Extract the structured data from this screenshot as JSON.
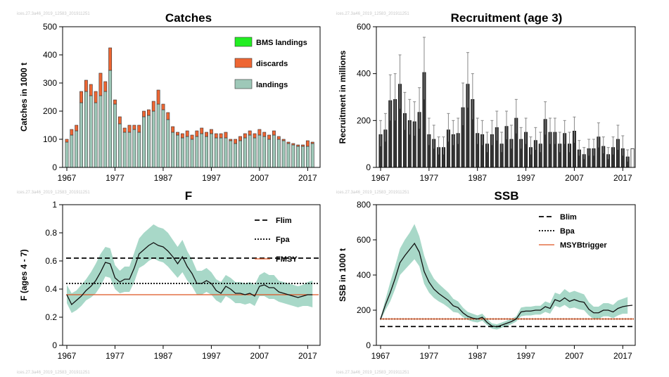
{
  "watermark": "ices.27.3a46_2019_12583_201911251",
  "chart_data": [
    {
      "id": "catches",
      "type": "bar",
      "title": "Catches",
      "ylabel": "Catches in 1000 t",
      "ylim": [
        0,
        500
      ],
      "yticks": [
        0,
        100,
        200,
        300,
        400,
        500
      ],
      "xticks": [
        1967,
        1977,
        1987,
        1997,
        2007,
        2017
      ],
      "stacked": true,
      "legend_position": "top-right",
      "colors": {
        "landings": "#9ec8b8",
        "discards": "#ee6633",
        "bms": "#22ee22"
      },
      "x": [
        1967,
        1968,
        1969,
        1970,
        1971,
        1972,
        1973,
        1974,
        1975,
        1976,
        1977,
        1978,
        1979,
        1980,
        1981,
        1982,
        1983,
        1984,
        1985,
        1986,
        1987,
        1988,
        1989,
        1990,
        1991,
        1992,
        1993,
        1994,
        1995,
        1996,
        1997,
        1998,
        1999,
        2000,
        2001,
        2002,
        2003,
        2004,
        2005,
        2006,
        2007,
        2008,
        2009,
        2010,
        2011,
        2012,
        2013,
        2014,
        2015,
        2016,
        2017,
        2018
      ],
      "series": [
        {
          "name": "landings",
          "values": [
            90,
            115,
            130,
            230,
            270,
            255,
            230,
            255,
            270,
            345,
            225,
            155,
            125,
            125,
            135,
            125,
            180,
            185,
            200,
            225,
            205,
            170,
            125,
            115,
            105,
            110,
            100,
            110,
            120,
            110,
            120,
            105,
            105,
            105,
            95,
            85,
            95,
            105,
            115,
            105,
            115,
            110,
            100,
            115,
            100,
            95,
            85,
            80,
            75,
            75,
            75,
            85
          ]
        },
        {
          "name": "discards",
          "values": [
            10,
            20,
            20,
            40,
            40,
            40,
            40,
            80,
            35,
            80,
            15,
            25,
            15,
            25,
            15,
            25,
            20,
            20,
            35,
            50,
            20,
            25,
            20,
            10,
            15,
            20,
            15,
            20,
            20,
            15,
            15,
            15,
            15,
            20,
            5,
            15,
            15,
            15,
            15,
            15,
            20,
            15,
            15,
            15,
            10,
            5,
            5,
            5,
            5,
            5,
            20,
            5
          ]
        },
        {
          "name": "BMS landings",
          "values": [
            0,
            0,
            0,
            0,
            0,
            0,
            0,
            0,
            0,
            0,
            0,
            0,
            0,
            0,
            0,
            0,
            0,
            0,
            0,
            0,
            0,
            0,
            0,
            0,
            0,
            0,
            0,
            0,
            0,
            0,
            0,
            0,
            0,
            0,
            0,
            0,
            0,
            0,
            0,
            0,
            0,
            0,
            0,
            0,
            0,
            0,
            0,
            0,
            0,
            0,
            0,
            0
          ]
        }
      ],
      "legend": [
        "BMS landings",
        "discards",
        "landings"
      ]
    },
    {
      "id": "recruitment",
      "type": "bar",
      "title": "Recruitment (age 3)",
      "ylabel": "Recruitment in millions",
      "ylim": [
        0,
        600
      ],
      "yticks": [
        0,
        200,
        400,
        600
      ],
      "xticks": [
        1967,
        1977,
        1987,
        1997,
        2007,
        2017
      ],
      "colors": {
        "bar": "#333333",
        "last": "#ffffff"
      },
      "x": [
        1967,
        1968,
        1969,
        1970,
        1971,
        1972,
        1973,
        1974,
        1975,
        1976,
        1977,
        1978,
        1979,
        1980,
        1981,
        1982,
        1983,
        1984,
        1985,
        1986,
        1987,
        1988,
        1989,
        1990,
        1991,
        1992,
        1993,
        1994,
        1995,
        1996,
        1997,
        1998,
        1999,
        2000,
        2001,
        2002,
        2003,
        2004,
        2005,
        2006,
        2007,
        2008,
        2009,
        2010,
        2011,
        2012,
        2013,
        2014,
        2015,
        2016,
        2017,
        2018,
        2019
      ],
      "values": [
        140,
        160,
        285,
        290,
        355,
        230,
        200,
        195,
        235,
        405,
        140,
        120,
        85,
        85,
        160,
        140,
        145,
        255,
        355,
        290,
        145,
        140,
        100,
        140,
        170,
        100,
        175,
        120,
        210,
        120,
        150,
        85,
        115,
        100,
        205,
        150,
        150,
        100,
        145,
        100,
        155,
        75,
        55,
        80,
        80,
        130,
        90,
        55,
        85,
        120,
        80,
        45,
        80
      ],
      "upper": [
        200,
        230,
        395,
        400,
        480,
        320,
        290,
        280,
        340,
        555,
        210,
        180,
        130,
        130,
        230,
        200,
        210,
        360,
        490,
        400,
        210,
        200,
        150,
        200,
        240,
        150,
        240,
        180,
        290,
        170,
        210,
        130,
        170,
        150,
        280,
        210,
        210,
        150,
        200,
        150,
        215,
        115,
        85,
        120,
        120,
        190,
        130,
        85,
        130,
        180,
        135,
        75,
        0
      ],
      "lower": [
        90,
        110,
        200,
        200,
        250,
        160,
        140,
        135,
        165,
        290,
        95,
        80,
        55,
        55,
        110,
        95,
        100,
        180,
        255,
        205,
        100,
        95,
        65,
        95,
        115,
        65,
        120,
        80,
        145,
        80,
        100,
        55,
        75,
        65,
        140,
        100,
        100,
        65,
        100,
        65,
        105,
        50,
        35,
        50,
        50,
        85,
        60,
        35,
        55,
        75,
        50,
        25,
        0
      ]
    },
    {
      "id": "fishing-mortality",
      "type": "line",
      "title": "F",
      "ylabel": "F (ages 4 - 7)",
      "ylim": [
        0,
        1
      ],
      "yticks": [
        0,
        0.2,
        0.4,
        0.6,
        0.8,
        1
      ],
      "ytick_labels": [
        "0",
        "0.2",
        "0.4",
        "0.6",
        "0.8",
        "1"
      ],
      "xticks": [
        1967,
        1977,
        1987,
        1997,
        2007,
        2017
      ],
      "colors": {
        "line": "#111111",
        "band": "#a8d8c8",
        "fmsy": "#dd5522"
      },
      "reference_lines": [
        {
          "name": "Flim",
          "value": 0.62,
          "style": "dashed"
        },
        {
          "name": "Fpa",
          "value": 0.44,
          "style": "dotted"
        },
        {
          "name": "FMSY",
          "value": 0.36,
          "style": "solid"
        }
      ],
      "x": [
        1967,
        1968,
        1969,
        1970,
        1971,
        1972,
        1973,
        1974,
        1975,
        1976,
        1977,
        1978,
        1979,
        1980,
        1981,
        1982,
        1983,
        1984,
        1985,
        1986,
        1987,
        1988,
        1989,
        1990,
        1991,
        1992,
        1993,
        1994,
        1995,
        1996,
        1997,
        1998,
        1999,
        2000,
        2001,
        2002,
        2003,
        2004,
        2005,
        2006,
        2007,
        2008,
        2009,
        2010,
        2011,
        2012,
        2013,
        2014,
        2015,
        2016,
        2017,
        2018
      ],
      "values": [
        0.36,
        0.29,
        0.32,
        0.35,
        0.39,
        0.42,
        0.46,
        0.52,
        0.59,
        0.58,
        0.48,
        0.45,
        0.47,
        0.47,
        0.55,
        0.65,
        0.68,
        0.71,
        0.73,
        0.71,
        0.7,
        0.67,
        0.63,
        0.58,
        0.63,
        0.56,
        0.51,
        0.44,
        0.44,
        0.46,
        0.44,
        0.39,
        0.37,
        0.42,
        0.4,
        0.37,
        0.37,
        0.36,
        0.37,
        0.35,
        0.42,
        0.43,
        0.41,
        0.41,
        0.38,
        0.37,
        0.36,
        0.35,
        0.34,
        0.35,
        0.36,
        0.36
      ],
      "upper": [
        0.43,
        0.37,
        0.39,
        0.43,
        0.47,
        0.52,
        0.58,
        0.65,
        0.7,
        0.69,
        0.57,
        0.53,
        0.56,
        0.56,
        0.66,
        0.76,
        0.8,
        0.83,
        0.86,
        0.84,
        0.83,
        0.8,
        0.75,
        0.7,
        0.75,
        0.67,
        0.61,
        0.53,
        0.53,
        0.55,
        0.52,
        0.47,
        0.45,
        0.5,
        0.48,
        0.45,
        0.45,
        0.44,
        0.45,
        0.43,
        0.5,
        0.52,
        0.5,
        0.5,
        0.46,
        0.45,
        0.44,
        0.43,
        0.42,
        0.43,
        0.45,
        0.46
      ],
      "lower": [
        0.3,
        0.23,
        0.25,
        0.28,
        0.32,
        0.34,
        0.37,
        0.42,
        0.49,
        0.48,
        0.4,
        0.37,
        0.38,
        0.38,
        0.45,
        0.55,
        0.57,
        0.6,
        0.62,
        0.6,
        0.59,
        0.56,
        0.52,
        0.48,
        0.52,
        0.46,
        0.42,
        0.36,
        0.36,
        0.38,
        0.36,
        0.32,
        0.3,
        0.35,
        0.33,
        0.3,
        0.3,
        0.29,
        0.3,
        0.28,
        0.35,
        0.35,
        0.33,
        0.33,
        0.31,
        0.3,
        0.29,
        0.28,
        0.27,
        0.28,
        0.28,
        0.27
      ]
    },
    {
      "id": "ssb",
      "type": "line",
      "title": "SSB",
      "ylabel": "SSB in 1000 t",
      "ylim": [
        0,
        800
      ],
      "yticks": [
        0,
        200,
        400,
        600,
        800
      ],
      "xticks": [
        1967,
        1977,
        1987,
        1997,
        2007,
        2017
      ],
      "colors": {
        "line": "#111111",
        "band": "#a8d8c8",
        "msy": "#dd5522"
      },
      "reference_lines": [
        {
          "name": "Blim",
          "value": 107,
          "style": "dashed"
        },
        {
          "name": "Bpa",
          "value": 150,
          "style": "dotted"
        },
        {
          "name": "MSYBtrigger",
          "value": 150,
          "style": "solid"
        }
      ],
      "x": [
        1967,
        1968,
        1969,
        1970,
        1971,
        1972,
        1973,
        1974,
        1975,
        1976,
        1977,
        1978,
        1979,
        1980,
        1981,
        1982,
        1983,
        1984,
        1985,
        1986,
        1987,
        1988,
        1989,
        1990,
        1991,
        1992,
        1993,
        1994,
        1995,
        1996,
        1997,
        1998,
        1999,
        2000,
        2001,
        2002,
        2003,
        2004,
        2005,
        2006,
        2007,
        2008,
        2009,
        2010,
        2011,
        2012,
        2013,
        2014,
        2015,
        2016,
        2017,
        2018,
        2019
      ],
      "values": [
        150,
        230,
        300,
        380,
        470,
        510,
        545,
        580,
        530,
        420,
        360,
        320,
        295,
        275,
        255,
        225,
        215,
        185,
        165,
        155,
        150,
        160,
        130,
        110,
        105,
        115,
        125,
        135,
        150,
        190,
        195,
        195,
        200,
        200,
        220,
        210,
        260,
        250,
        270,
        250,
        260,
        250,
        245,
        205,
        185,
        185,
        200,
        200,
        190,
        210,
        220,
        225,
        228
      ],
      "upper": [
        160,
        260,
        360,
        450,
        550,
        600,
        640,
        690,
        620,
        510,
        430,
        380,
        350,
        325,
        300,
        265,
        250,
        215,
        190,
        180,
        170,
        180,
        150,
        125,
        120,
        130,
        140,
        150,
        165,
        215,
        220,
        220,
        225,
        225,
        250,
        240,
        300,
        290,
        320,
        300,
        310,
        300,
        290,
        245,
        220,
        220,
        240,
        240,
        230,
        255,
        265,
        275,
        0
      ],
      "lower": [
        140,
        200,
        250,
        320,
        400,
        430,
        460,
        490,
        450,
        350,
        300,
        270,
        250,
        235,
        215,
        190,
        185,
        160,
        145,
        135,
        130,
        140,
        115,
        95,
        90,
        100,
        110,
        120,
        135,
        165,
        170,
        170,
        175,
        175,
        190,
        180,
        225,
        215,
        230,
        210,
        215,
        205,
        200,
        170,
        150,
        150,
        165,
        165,
        155,
        170,
        180,
        180,
        0
      ]
    }
  ]
}
